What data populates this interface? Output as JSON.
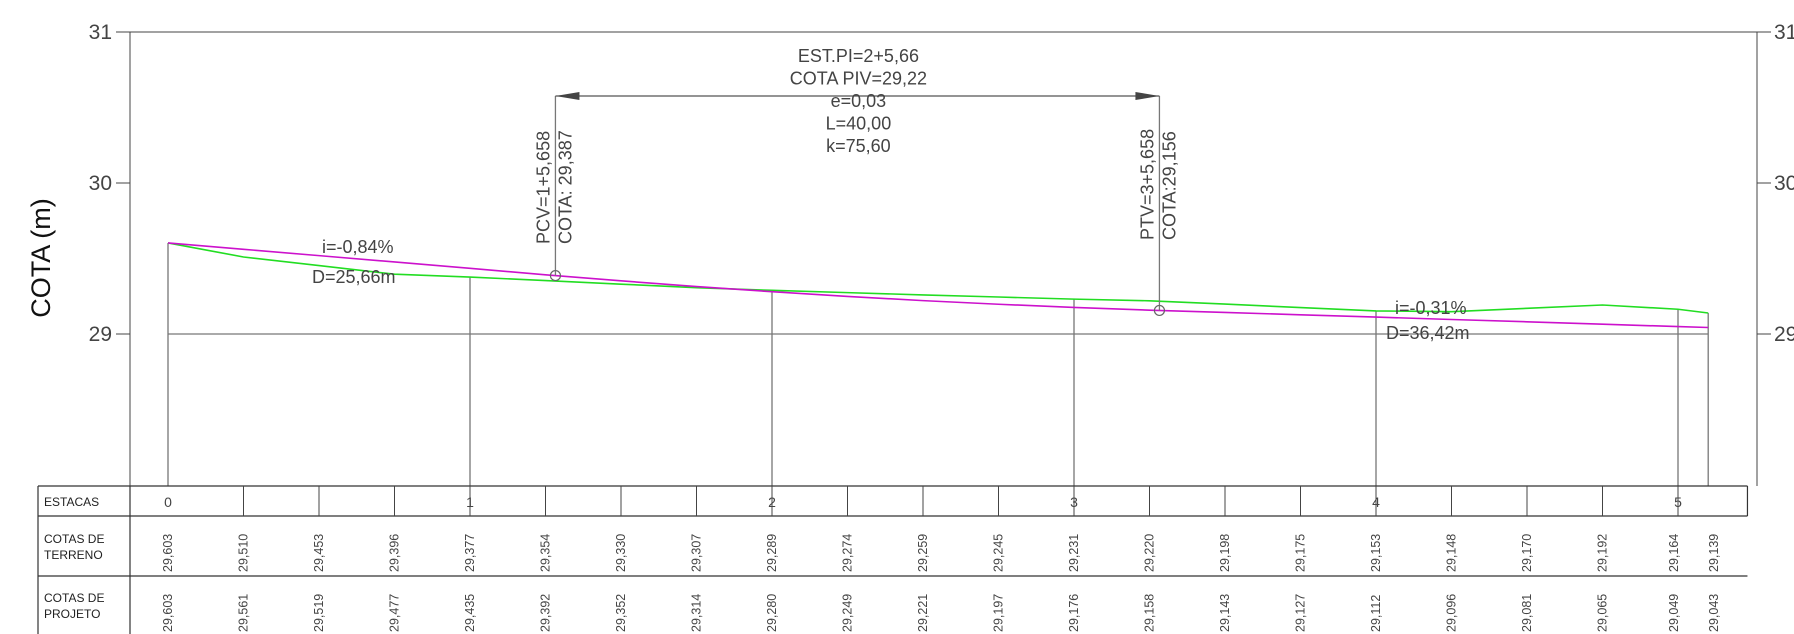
{
  "chart_data": {
    "type": "line",
    "ylabel": "COTA (m)",
    "y_ticks": [
      "31",
      "30",
      "29"
    ],
    "y_range": [
      28,
      31
    ],
    "x_range": [
      0,
      5.3
    ],
    "stations_labeled": [
      "0",
      "1",
      "2",
      "3",
      "4",
      "5"
    ],
    "table_rows": {
      "estacas_label": "ESTACAS",
      "terreno_label": [
        "COTAS DE",
        "TERRENO"
      ],
      "projeto_label": [
        "COTAS DE",
        "PROJETO"
      ]
    },
    "x": [
      0,
      0.25,
      0.5,
      0.75,
      1,
      1.25,
      1.5,
      1.75,
      2,
      2.25,
      2.5,
      2.75,
      3,
      3.25,
      3.5,
      3.75,
      4,
      4.25,
      4.5,
      4.75,
      5,
      5.1
    ],
    "cotas_terreno": [
      "29,603",
      "29,510",
      "29,453",
      "29,396",
      "29,377",
      "29,354",
      "29,330",
      "29,307",
      "29,289",
      "29,274",
      "29,259",
      "29,245",
      "29,231",
      "29,220",
      "29,198",
      "29,175",
      "29,153",
      "29,148",
      "29,170",
      "29,192",
      "29,164",
      "29,139"
    ],
    "cotas_projeto": [
      "29,603",
      "29,561",
      "29,519",
      "29,477",
      "29,435",
      "29,392",
      "29,352",
      "29,314",
      "29,280",
      "29,249",
      "29,221",
      "29,197",
      "29,176",
      "29,158",
      "29,143",
      "29,127",
      "29,112",
      "29,096",
      "29,081",
      "29,065",
      "29,049",
      "29,043"
    ],
    "series": [
      {
        "values": [
          29.603,
          29.51,
          29.453,
          29.396,
          29.377,
          29.354,
          29.33,
          29.307,
          29.289,
          29.274,
          29.259,
          29.245,
          29.231,
          29.22,
          29.198,
          29.175,
          29.153,
          29.148,
          29.17,
          29.192,
          29.164,
          29.139
        ],
        "color": "#22dd22"
      },
      {
        "values": [
          29.603,
          29.561,
          29.519,
          29.477,
          29.435,
          29.392,
          29.352,
          29.314,
          29.28,
          29.249,
          29.221,
          29.197,
          29.176,
          29.158,
          29.143,
          29.127,
          29.112,
          29.096,
          29.081,
          29.065,
          29.049,
          29.043
        ],
        "color": "#cc11cc"
      }
    ],
    "annotations": {
      "curve_info": [
        "EST.PI=2+5,66",
        "COTA PIV=29,22",
        "e=0,03",
        "L=40,00",
        "k=75,60"
      ],
      "pcv_station": "PCV=1+5,658",
      "pcv_cota": "COTA: 29,387",
      "ptv_station": "PTV=3+5,658",
      "ptv_cota": "COTA:29,156",
      "grade1": "i=-0,84%",
      "dist1": "D=25,66m",
      "grade2": "i=-0,31%",
      "dist2": "D=36,42m",
      "pcv": {
        "x": 1.2829,
        "y": 29.387
      },
      "ptv": {
        "x": 3.2829,
        "y": 29.156
      }
    },
    "grid": false
  }
}
